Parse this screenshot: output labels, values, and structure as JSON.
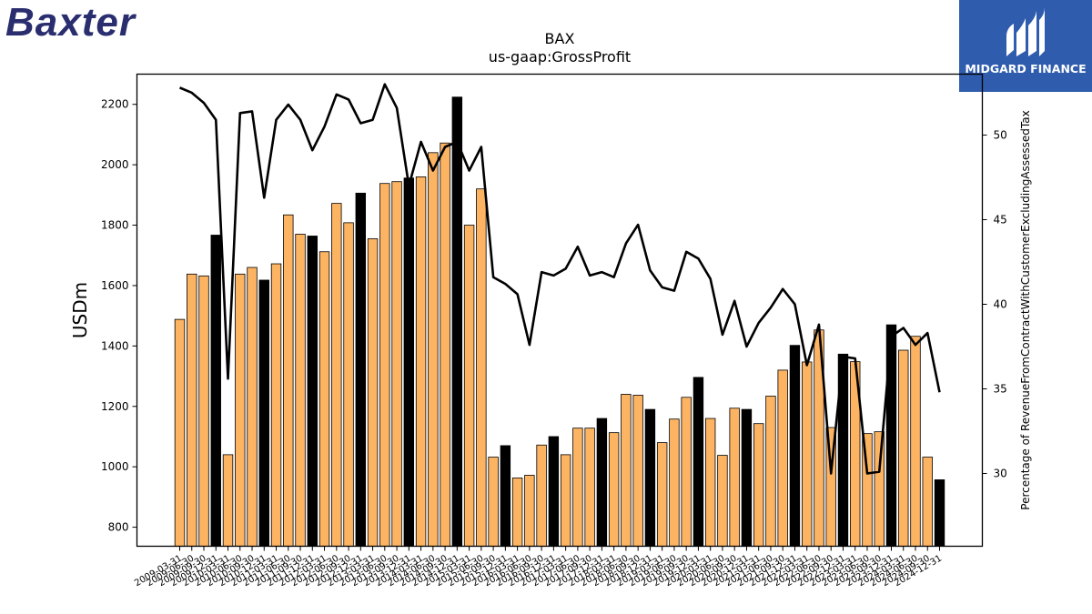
{
  "branding": {
    "company_logo_text": "Baxter",
    "publisher_logo_text": "MIDGARD FINANCE"
  },
  "colors": {
    "bar_default": "#fdb462",
    "bar_highlight": "#000000",
    "line": "#000000",
    "logo_left": "#2a2e6f",
    "logo_right_bg": "#2f5cad"
  },
  "chart_data": {
    "type": "bar",
    "title": "BAX",
    "subtitle": "us-gaap:GrossProfit",
    "ylabel": "USDm",
    "y2label": "Percentage of RevenueFromContractWithCustomerExcludingAssessedTax",
    "ylim": [
      737,
      2300
    ],
    "y2lim": [
      25.7,
      53.6
    ],
    "yticks": [
      800,
      1000,
      1200,
      1400,
      1600,
      1800,
      2000,
      2200
    ],
    "y2ticks": [
      30,
      35,
      40,
      45,
      50
    ],
    "grid": false,
    "legend": "none",
    "x": [
      "2009-03-31",
      "2009-06-30",
      "2009-09-30",
      "2009-12-31",
      "2010-03-31",
      "2010-06-30",
      "2010-09-30",
      "2010-12-31",
      "2011-03-31",
      "2011-06-30",
      "2011-09-30",
      "2011-12-31",
      "2012-03-31",
      "2012-06-30",
      "2012-09-30",
      "2012-12-31",
      "2013-03-31",
      "2013-06-30",
      "2013-09-30",
      "2013-12-31",
      "2014-03-31",
      "2014-06-30",
      "2014-09-30",
      "2014-12-31",
      "2015-03-31",
      "2015-06-30",
      "2015-09-30",
      "2015-12-31",
      "2016-03-31",
      "2016-06-30",
      "2016-09-30",
      "2016-12-31",
      "2017-03-31",
      "2017-06-30",
      "2017-09-30",
      "2017-12-31",
      "2018-03-31",
      "2018-06-30",
      "2018-09-30",
      "2018-12-31",
      "2019-03-31",
      "2019-06-30",
      "2019-09-30",
      "2019-12-31",
      "2020-03-31",
      "2020-06-30",
      "2020-09-30",
      "2020-12-31",
      "2021-03-31",
      "2021-06-30",
      "2021-09-30",
      "2021-12-31",
      "2022-03-31",
      "2022-06-30",
      "2022-09-30",
      "2022-12-31",
      "2023-03-31",
      "2023-06-30",
      "2023-09-30",
      "2023-12-31",
      "2024-03-31",
      "2024-06-30",
      "2024-09-30",
      "2024-12-31"
    ],
    "xtick_labels": [
      "2009-03-31",
      "2009-06-30",
      "2009-09-30",
      "2009-12-31",
      "2010-03-31",
      "2010-06-30",
      "2010-09-30",
      "2010-12-31",
      "2011-03-31",
      "2011-06-30",
      "2011-09-30",
      "2011-12-31",
      "2012-03-31",
      "2012-06-30",
      "2012-09-30",
      "2012-12-31",
      "2013-03-31",
      "2013-06-30",
      "2013-09-30",
      "2013-12-31",
      "2014-03-31",
      "2014-06-30",
      "2014-09-30",
      "2014-12-31",
      "2015-03-31",
      "2015-06-30",
      "2015-09-30",
      "2015-12-31",
      "2016-03-31",
      "2016-06-30",
      "2016-09-30",
      "2016-12-31",
      "2017-03-31",
      "2017-06-30",
      "2017-09-30",
      "2017-12-31",
      "2018-03-31",
      "2018-06-30",
      "2018-09-30",
      "2018-12-31",
      "2019-03-31",
      "2019-06-30",
      "2019-09-30",
      "2019-12-31",
      "2020-03-31",
      "2020-06-30",
      "2020-09-30",
      "2020-12-31",
      "2021-03-31",
      "2021-06-30",
      "2021-09-30",
      "2021-12-31",
      "2022-03-31",
      "2022-06-30",
      "2022-09-30",
      "2022-12-31",
      "2023-03-31",
      "2023-06-30",
      "2023-09-30",
      "2023-12-31",
      "2024-03-31",
      "2024-06-30",
      "2024-09-30",
      "2024-12-31"
    ],
    "series": [
      {
        "kind": "bar",
        "axis": "left",
        "values": [
          1488,
          1638,
          1632,
          1767,
          1040,
          1638,
          1660,
          1618,
          1672,
          1834,
          1770,
          1764,
          1712,
          1872,
          1808,
          1906,
          1755,
          1938,
          1944,
          1956,
          1960,
          2040,
          2072,
          2224,
          1800,
          1920,
          1032,
          1070,
          963,
          972,
          1072,
          1100,
          1040,
          1128,
          1128,
          1160,
          1113,
          1240,
          1237,
          1190,
          1080,
          1158,
          1230,
          1296,
          1160,
          1038,
          1194,
          1190,
          1143,
          1234,
          1320,
          1402,
          1347,
          1453,
          1130,
          1373,
          1348,
          1110,
          1116,
          1470,
          1386,
          1432,
          1032,
          957
        ],
        "highlight": [
          false,
          false,
          false,
          true,
          false,
          false,
          false,
          true,
          false,
          false,
          false,
          true,
          false,
          false,
          false,
          true,
          false,
          false,
          false,
          true,
          false,
          false,
          false,
          true,
          false,
          false,
          false,
          true,
          false,
          false,
          false,
          true,
          false,
          false,
          false,
          true,
          false,
          false,
          false,
          true,
          false,
          false,
          false,
          true,
          false,
          false,
          false,
          true,
          false,
          false,
          false,
          true,
          false,
          false,
          false,
          true,
          false,
          false,
          false,
          true,
          false,
          false,
          false,
          true
        ]
      },
      {
        "kind": "line",
        "axis": "right",
        "values": [
          52.8,
          52.5,
          51.9,
          50.9,
          35.6,
          51.3,
          51.4,
          46.3,
          50.9,
          51.8,
          50.9,
          49.1,
          50.5,
          52.4,
          52.1,
          50.7,
          50.9,
          53.0,
          51.6,
          47.0,
          49.6,
          47.9,
          49.3,
          49.6,
          47.9,
          49.3,
          41.6,
          41.2,
          40.6,
          37.6,
          41.9,
          41.7,
          42.1,
          43.4,
          41.7,
          41.9,
          41.6,
          43.6,
          44.7,
          42.0,
          41.0,
          40.8,
          43.1,
          42.7,
          41.5,
          38.2,
          40.2,
          37.5,
          38.9,
          39.8,
          40.9,
          40.0,
          36.4,
          38.8,
          30.0,
          36.9,
          36.8,
          30.0,
          30.1,
          38.1,
          38.6,
          37.6,
          38.3,
          34.8
        ]
      }
    ]
  }
}
